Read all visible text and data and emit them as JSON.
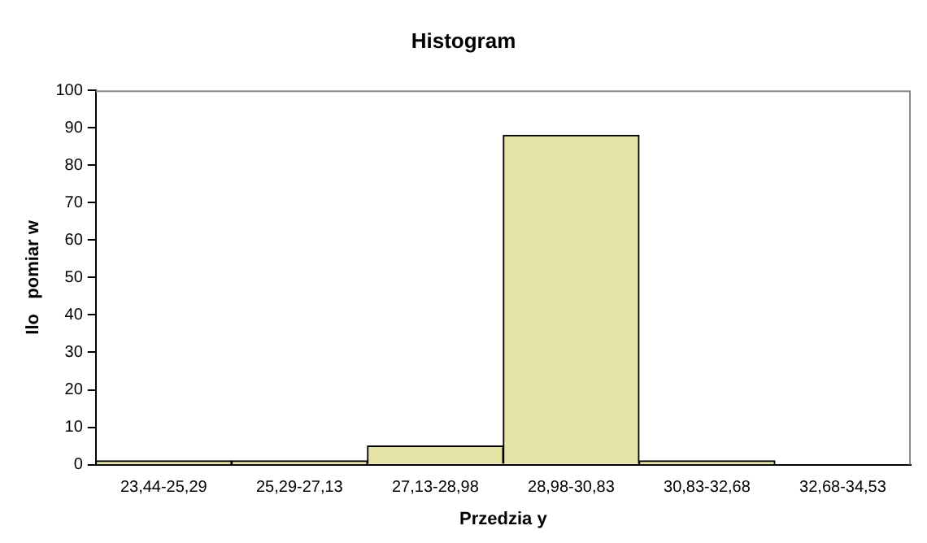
{
  "chart_data": {
    "type": "bar",
    "title": "Histogram",
    "xlabel": "Przedzia y",
    "ylabel": "Ilo   pomiar w",
    "categories": [
      "23,44-25,29",
      "25,29-27,13",
      "27,13-28,98",
      "28,98-30,83",
      "30,83-32,68",
      "32,68-34,53"
    ],
    "values": [
      1,
      1,
      5,
      88,
      1,
      0
    ],
    "color": "#e6e3a6",
    "ylim": [
      0,
      100
    ],
    "yticks": [
      0,
      10,
      20,
      30,
      40,
      50,
      60,
      70,
      80,
      90,
      100
    ],
    "grid": false,
    "legend": false
  }
}
